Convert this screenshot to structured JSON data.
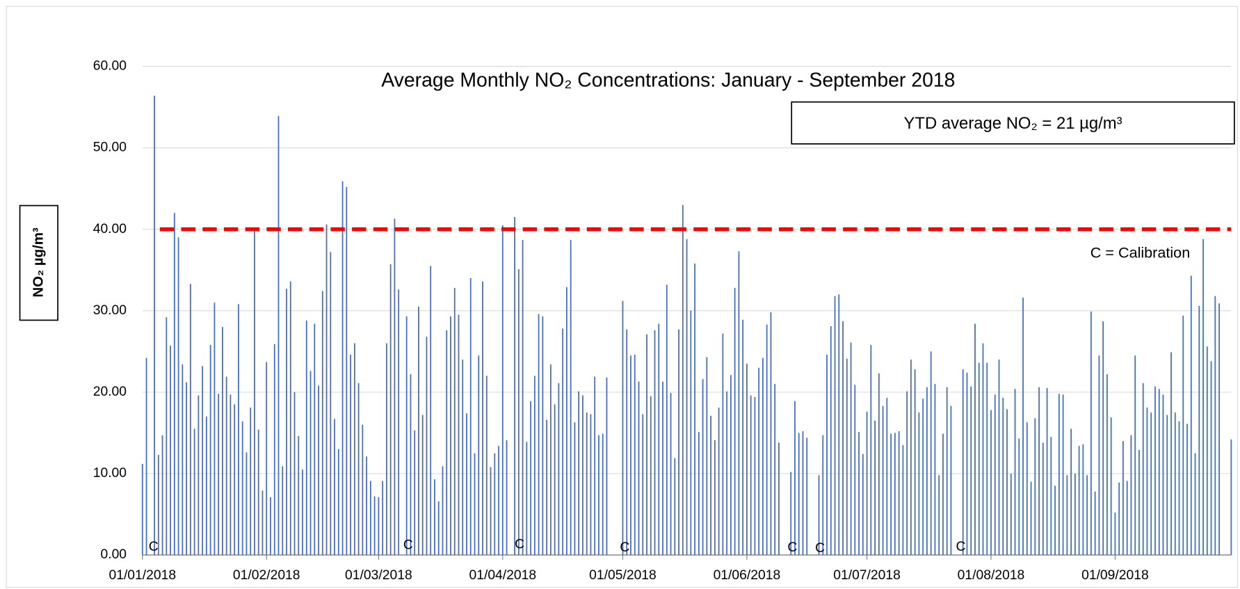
{
  "chart_data": {
    "type": "bar",
    "title": "Average Monthly NO₂ Concentrations: January - September 2018",
    "y_label": "NO₂ µg/m³",
    "annotations": [
      "YTD average NO₂ = 21  µg/m³",
      "C = Calibration",
      "C",
      "C",
      "C",
      "C",
      "C",
      "C",
      "C"
    ],
    "limit_line": 40,
    "limit_color": "#ff0000",
    "color": "#4472c4",
    "grid": true,
    "ylim": [
      0,
      60
    ],
    "yticks": [
      {
        "value": 0,
        "label": "0.00"
      },
      {
        "value": 10,
        "label": "10.00"
      },
      {
        "value": 20,
        "label": "20.00"
      },
      {
        "value": 30,
        "label": "30.00"
      },
      {
        "value": 40,
        "label": "40.00"
      },
      {
        "value": 50,
        "label": "50.00"
      },
      {
        "value": 60,
        "label": "60.00"
      }
    ],
    "categories": [
      "01/01/2018",
      null,
      null,
      null,
      null,
      null,
      null,
      null,
      null,
      null,
      null,
      null,
      null,
      null,
      null,
      null,
      null,
      null,
      null,
      null,
      null,
      null,
      null,
      null,
      null,
      null,
      null,
      null,
      null,
      null,
      null,
      "01/02/2018",
      null,
      null,
      null,
      null,
      null,
      null,
      null,
      null,
      null,
      null,
      null,
      null,
      null,
      null,
      null,
      null,
      null,
      null,
      null,
      null,
      null,
      null,
      null,
      null,
      null,
      null,
      null,
      "01/03/2018",
      null,
      null,
      null,
      null,
      null,
      null,
      null,
      null,
      null,
      null,
      null,
      null,
      null,
      null,
      null,
      null,
      null,
      null,
      null,
      null,
      null,
      null,
      null,
      null,
      null,
      null,
      null,
      null,
      null,
      null,
      "01/04/2018",
      null,
      null,
      null,
      null,
      null,
      null,
      null,
      null,
      null,
      null,
      null,
      null,
      null,
      null,
      null,
      null,
      null,
      null,
      null,
      null,
      null,
      null,
      null,
      null,
      null,
      null,
      null,
      null,
      null,
      "01/05/2018",
      null,
      null,
      null,
      null,
      null,
      null,
      null,
      null,
      null,
      null,
      null,
      null,
      null,
      null,
      null,
      null,
      null,
      null,
      null,
      null,
      null,
      null,
      null,
      null,
      null,
      null,
      null,
      null,
      null,
      null,
      "01/06/2018",
      null,
      null,
      null,
      null,
      null,
      null,
      null,
      null,
      null,
      null,
      null,
      null,
      null,
      null,
      null,
      null,
      null,
      null,
      null,
      null,
      null,
      null,
      null,
      null,
      null,
      null,
      null,
      null,
      null,
      "01/07/2018",
      null,
      null,
      null,
      null,
      null,
      null,
      null,
      null,
      null,
      null,
      null,
      null,
      null,
      null,
      null,
      null,
      null,
      null,
      null,
      null,
      null,
      null,
      null,
      null,
      null,
      null,
      null,
      null,
      null,
      null,
      "01/08/2018",
      null,
      null,
      null,
      null,
      null,
      null,
      null,
      null,
      null,
      null,
      null,
      null,
      null,
      null,
      null,
      null,
      null,
      null,
      null,
      null,
      null,
      null,
      null,
      null,
      null,
      null,
      null,
      null,
      null,
      null,
      "01/09/2018",
      null,
      null,
      null,
      null,
      null,
      null,
      null,
      null,
      null,
      null,
      null,
      null,
      null,
      null,
      null,
      null,
      null,
      null,
      null,
      null,
      null,
      null,
      null,
      null,
      null,
      null,
      null,
      null,
      null
    ],
    "values": [
      11.2,
      24.2,
      null,
      56.4,
      12.3,
      14.7,
      29.2,
      25.7,
      42.0,
      39.0,
      23.4,
      21.2,
      33.3,
      15.5,
      19.6,
      23.2,
      17.0,
      25.8,
      31.0,
      19.8,
      28.0,
      21.9,
      19.7,
      18.5,
      30.8,
      16.4,
      12.6,
      18.1,
      39.8,
      15.4,
      7.9,
      23.7,
      7.1,
      25.9,
      53.9,
      10.9,
      32.7,
      33.6,
      20.0,
      14.6,
      10.5,
      28.8,
      22.6,
      28.4,
      20.8,
      32.4,
      40.6,
      37.2,
      16.7,
      13.0,
      45.9,
      45.2,
      24.6,
      26.0,
      21.1,
      16.0,
      12.1,
      9.1,
      7.2,
      7.1,
      9.1,
      26.0,
      35.7,
      41.3,
      32.6,
      null,
      29.3,
      22.2,
      15.3,
      30.5,
      17.2,
      26.8,
      35.5,
      9.3,
      6.6,
      10.9,
      27.6,
      29.3,
      32.8,
      29.5,
      24.0,
      17.4,
      34.0,
      12.5,
      24.5,
      33.6,
      22.0,
      10.8,
      12.5,
      13.4,
      40.5,
      14.1,
      null,
      41.5,
      35.1,
      38.7,
      13.9,
      18.9,
      22.0,
      29.6,
      29.3,
      16.6,
      23.4,
      18.5,
      21.1,
      27.8,
      32.9,
      38.7,
      16.3,
      20.1,
      19.6,
      17.5,
      17.3,
      21.9,
      14.7,
      14.9,
      21.8,
      null,
      null,
      null,
      31.2,
      27.7,
      24.5,
      24.6,
      21.3,
      17.3,
      27.1,
      19.5,
      27.6,
      28.4,
      21.3,
      33.2,
      19.9,
      11.9,
      27.7,
      43.0,
      38.8,
      30.0,
      35.8,
      15.1,
      21.6,
      24.3,
      17.1,
      14.1,
      18.1,
      27.2,
      20.1,
      22.1,
      32.8,
      37.3,
      28.9,
      23.5,
      19.6,
      19.4,
      23.0,
      24.2,
      28.3,
      29.8,
      21.0,
      13.8,
      null,
      null,
      10.2,
      18.9,
      15.0,
      15.2,
      14.4,
      null,
      null,
      9.8,
      14.7,
      24.6,
      28.1,
      31.8,
      32.0,
      28.7,
      24.1,
      26.1,
      20.9,
      15.1,
      12.4,
      17.6,
      25.8,
      16.5,
      22.3,
      18.3,
      19.3,
      14.9,
      15.0,
      15.2,
      13.5,
      20.1,
      24.0,
      22.8,
      17.5,
      19.2,
      20.6,
      25.0,
      21.0,
      9.8,
      14.9,
      20.6,
      18.3,
      null,
      null,
      22.8,
      22.4,
      20.7,
      28.4,
      23.6,
      26.0,
      23.6,
      17.8,
      19.7,
      24.0,
      19.3,
      17.9,
      10.0,
      20.4,
      14.3,
      31.6,
      16.3,
      9.0,
      16.8,
      20.6,
      13.8,
      20.5,
      14.5,
      8.5,
      19.8,
      19.7,
      9.8,
      15.5,
      10.0,
      13.4,
      13.6,
      9.8,
      29.9,
      7.8,
      24.5,
      28.7,
      22.2,
      16.9,
      5.2,
      8.9,
      14.0,
      9.1,
      14.7,
      24.5,
      12.9,
      21.1,
      18.1,
      17.5,
      20.7,
      20.4,
      19.7,
      17.2,
      24.9,
      17.5,
      16.4,
      29.4,
      16.1,
      34.3,
      12.5,
      30.6,
      38.8,
      25.6,
      23.8,
      31.8,
      30.9,
      null,
      null,
      14.2
    ]
  }
}
